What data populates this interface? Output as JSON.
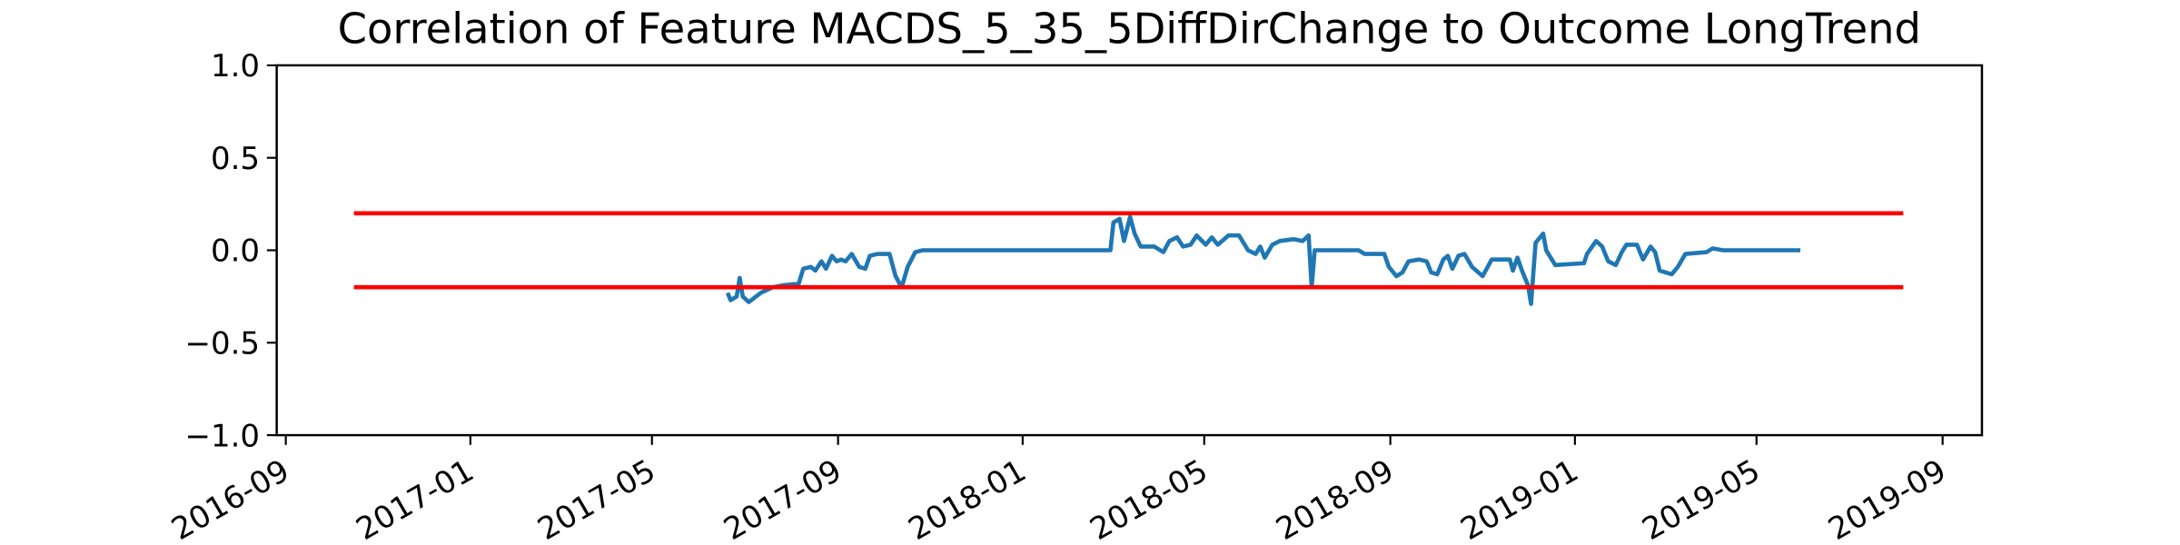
{
  "chart_data": {
    "type": "line",
    "title": "Correlation of Feature MACDS_5_35_5DiffDirChange to Outcome LongTrend",
    "xlim": [
      "2016-08-26",
      "2019-09-27"
    ],
    "xticks": [
      "2016-09",
      "2017-01",
      "2017-05",
      "2017-09",
      "2018-01",
      "2018-05",
      "2018-09",
      "2019-01",
      "2019-05",
      "2019-09"
    ],
    "ylim": [
      -1,
      1
    ],
    "yticks": [
      {
        "value": -1,
        "label": "−1.0"
      },
      {
        "value": -0.5,
        "label": "−0.5"
      },
      {
        "value": 0,
        "label": "0.0"
      },
      0.5,
      {
        "value": 1,
        "label": "1.0"
      }
    ],
    "grid": false,
    "series": [
      {
        "color": "#1f77b4",
        "x": [
          "2017-06-20",
          "2017-06-22",
          "2017-06-26",
          "2017-06-28",
          "2017-06-30",
          "2017-07-04",
          "2017-07-12",
          "2017-07-20",
          "2017-07-26",
          "2017-08-06",
          "2017-08-09",
          "2017-08-14",
          "2017-08-17",
          "2017-08-21",
          "2017-08-24",
          "2017-08-28",
          "2017-08-31",
          "2017-09-03",
          "2017-09-06",
          "2017-09-10",
          "2017-09-15",
          "2017-09-19",
          "2017-09-22",
          "2017-09-27",
          "2017-10-05",
          "2017-10-09",
          "2017-10-13",
          "2017-10-17",
          "2017-10-22",
          "2017-10-27",
          "2018-02-28",
          "2018-03-02",
          "2018-03-06",
          "2018-03-09",
          "2018-03-13",
          "2018-03-16",
          "2018-03-20",
          "2018-03-29",
          "2018-04-04",
          "2018-04-08",
          "2018-04-13",
          "2018-04-17",
          "2018-04-22",
          "2018-04-26",
          "2018-05-02",
          "2018-05-06",
          "2018-05-10",
          "2018-05-17",
          "2018-05-24",
          "2018-05-30",
          "2018-06-04",
          "2018-06-07",
          "2018-06-10",
          "2018-06-15",
          "2018-06-20",
          "2018-06-29",
          "2018-07-05",
          "2018-07-09",
          "2018-07-11",
          "2018-07-13",
          "2018-08-11",
          "2018-08-15",
          "2018-08-25",
          "2018-08-28",
          "2018-08-31",
          "2018-09-05",
          "2018-09-09",
          "2018-09-13",
          "2018-09-20",
          "2018-09-25",
          "2018-09-28",
          "2018-10-02",
          "2018-10-06",
          "2018-10-09",
          "2018-10-12",
          "2018-10-16",
          "2018-10-20",
          "2018-10-25",
          "2018-11-01",
          "2018-11-07",
          "2018-11-15",
          "2018-11-19",
          "2018-11-21",
          "2018-11-24",
          "2018-11-27",
          "2018-12-01",
          "2018-12-03",
          "2018-12-06",
          "2018-12-11",
          "2018-12-13",
          "2018-12-19",
          "2019-01-07",
          "2019-01-09",
          "2019-01-15",
          "2019-01-19",
          "2019-01-23",
          "2019-01-28",
          "2019-02-01",
          "2019-02-04",
          "2019-02-11",
          "2019-02-15",
          "2019-02-20",
          "2019-02-23",
          "2019-02-26",
          "2019-03-06",
          "2019-03-10",
          "2019-03-15",
          "2019-03-29",
          "2019-04-02",
          "2019-04-09",
          "2019-05-30"
        ],
        "values": [
          -0.23,
          -0.27,
          -0.25,
          -0.15,
          -0.25,
          -0.28,
          -0.23,
          -0.2,
          -0.19,
          -0.18,
          -0.1,
          -0.09,
          -0.11,
          -0.06,
          -0.1,
          -0.03,
          -0.06,
          -0.05,
          -0.06,
          -0.02,
          -0.09,
          -0.1,
          -0.03,
          -0.02,
          -0.02,
          -0.14,
          -0.2,
          -0.09,
          -0.01,
          0,
          0,
          0.15,
          0.17,
          0.05,
          0.18,
          0.09,
          0.02,
          0.02,
          -0.01,
          0.05,
          0.07,
          0.02,
          0.03,
          0.08,
          0.03,
          0.07,
          0.03,
          0.08,
          0.08,
          0,
          -0.02,
          0.02,
          -0.04,
          0.03,
          0.05,
          0.06,
          0.05,
          0.08,
          -0.2,
          0,
          0,
          -0.02,
          -0.02,
          -0.02,
          -0.09,
          -0.14,
          -0.12,
          -0.06,
          -0.05,
          -0.06,
          -0.12,
          -0.13,
          -0.05,
          -0.03,
          -0.1,
          -0.03,
          -0.02,
          -0.09,
          -0.14,
          -0.05,
          -0.05,
          -0.05,
          -0.11,
          -0.04,
          -0.11,
          -0.19,
          -0.29,
          0.04,
          0.09,
          0,
          -0.08,
          -0.07,
          -0.02,
          0.05,
          0.02,
          -0.06,
          -0.08,
          -0.01,
          0.03,
          0.03,
          -0.05,
          0.02,
          -0.01,
          -0.11,
          -0.13,
          -0.09,
          -0.02,
          -0.01,
          0.01,
          0,
          0
        ]
      },
      {
        "color": "#ff0000",
        "x": [
          "2016-10-16",
          "2019-08-06"
        ],
        "values": [
          0.2,
          0.2
        ]
      },
      {
        "color": "#ff0000",
        "x": [
          "2016-10-16",
          "2019-08-06"
        ],
        "values": [
          -0.2,
          -0.2
        ]
      }
    ]
  }
}
